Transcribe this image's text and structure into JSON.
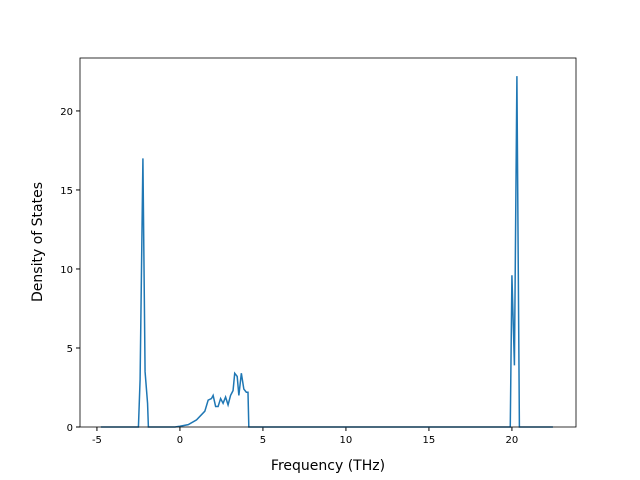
{
  "chart_data": {
    "type": "line",
    "xlabel": "Frequency (THz)",
    "ylabel": "Density of States",
    "x": [
      -4.76,
      -2.5,
      -2.4,
      -2.23,
      -2.1,
      -1.95,
      -1.9,
      -0.3,
      0,
      0.5,
      1.0,
      1.5,
      1.7,
      1.9,
      2.0,
      2.15,
      2.3,
      2.45,
      2.6,
      2.75,
      2.9,
      3.05,
      3.2,
      3.3,
      3.45,
      3.55,
      3.7,
      3.85,
      4.0,
      4.1,
      4.15,
      19.8,
      19.9,
      20.0,
      20.15,
      20.3,
      20.45,
      22.47
    ],
    "values": [
      0,
      0,
      3.0,
      17.0,
      3.5,
      1.5,
      0,
      0,
      0.05,
      0.15,
      0.45,
      1.0,
      1.7,
      1.8,
      2.0,
      1.3,
      1.3,
      1.8,
      1.5,
      1.9,
      1.4,
      2.0,
      2.3,
      3.4,
      3.2,
      2.0,
      3.4,
      2.4,
      2.2,
      2.2,
      0,
      0,
      0,
      9.6,
      3.9,
      22.2,
      0,
      0
    ],
    "color": "#1f77b4",
    "xlim": [
      -6.02,
      23.86
    ],
    "ylim": [
      0,
      23.35
    ],
    "xticks": [
      -5,
      0,
      5,
      10,
      15,
      20
    ],
    "yticks": [
      0,
      5,
      10,
      15,
      20
    ]
  }
}
